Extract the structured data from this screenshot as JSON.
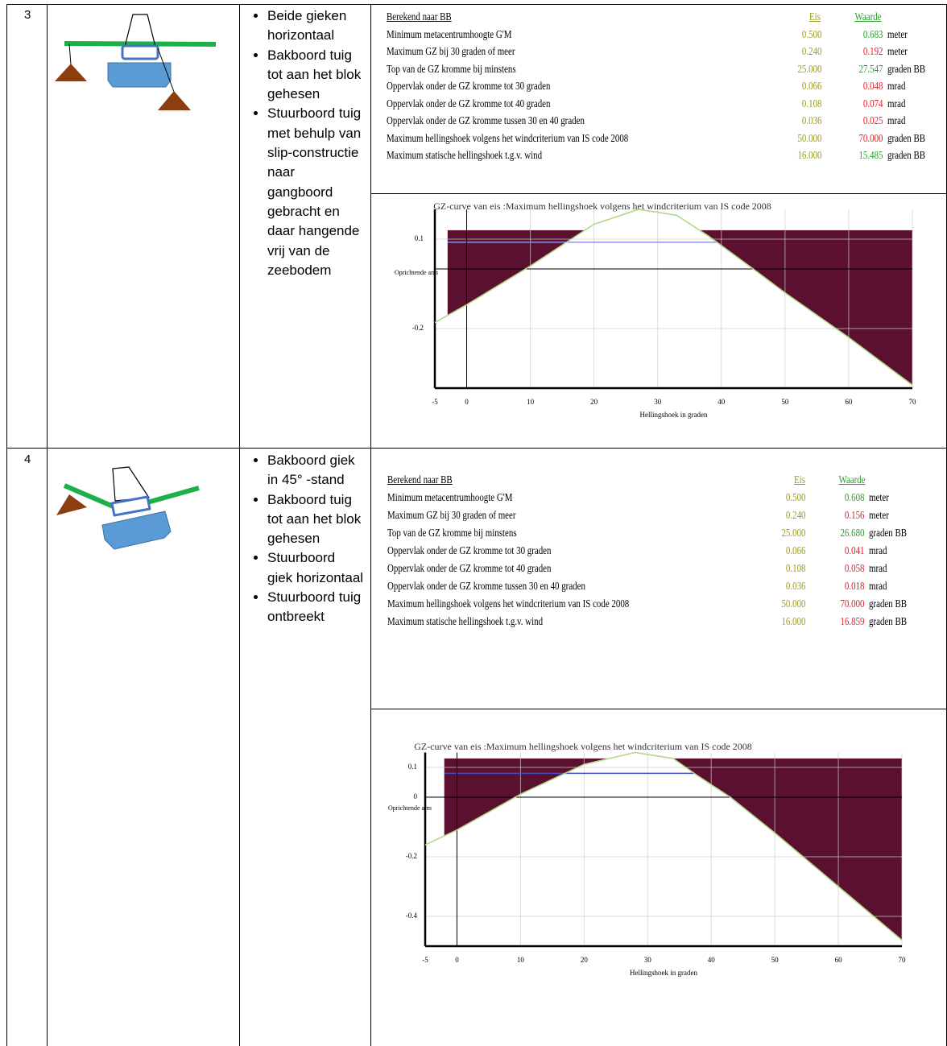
{
  "rows": [
    {
      "number": "3",
      "bullets": [
        "Beide gieken horizontaal",
        "Bakboord tuig tot aan het blok gehesen",
        "Stuurboord tuig met behulp van slip-constructie naar gangboord gebracht en daar hangende vrij van de zeebodem"
      ],
      "stability": {
        "title": "Berekend naar BB",
        "eis_header": "Eis",
        "waarde_header": "Waarde",
        "eis_color": "#9b9b1f",
        "header_color": "#2a9d2a",
        "rows": [
          {
            "label": "Minimum metacentrumhoogte G'M",
            "eis": "0.500",
            "waarde": "0.683",
            "unit": "meter",
            "color": "#2a9d2a"
          },
          {
            "label": "Maximum GZ bij 30 graden of meer",
            "eis": "0.240",
            "waarde": "0.192",
            "unit": "meter",
            "color": "#e0202a"
          },
          {
            "label": "Top van de GZ kromme bij minstens",
            "eis": "25.000",
            "waarde": "27.547",
            "unit": "graden BB",
            "color": "#2a9d2a"
          },
          {
            "label": "Oppervlak onder de GZ kromme tot 30 graden",
            "eis": "0.066",
            "waarde": "0.048",
            "unit": "mrad",
            "color": "#e0202a"
          },
          {
            "label": "Oppervlak onder de GZ kromme tot 40 graden",
            "eis": "0.108",
            "waarde": "0.074",
            "unit": "mrad",
            "color": "#e0202a"
          },
          {
            "label": "Oppervlak onder de GZ kromme tussen 30 en 40 graden",
            "eis": "0.036",
            "waarde": "0.025",
            "unit": "mrad",
            "color": "#e0202a"
          },
          {
            "label": "Maximum hellingshoek volgens het windcriterium van IS code 2008",
            "eis": "50.000",
            "waarde": "70.000",
            "unit": "graden BB",
            "color": "#e0202a"
          },
          {
            "label": "Maximum statische hellingshoek t.g.v. wind",
            "eis": "16.000",
            "waarde": "15.485",
            "unit": "graden BB",
            "color": "#2a9d2a"
          }
        ]
      },
      "chart_data": {
        "type": "line",
        "title": "GZ-curve van eis :Maximum hellingshoek volgens het windcriterium van IS code 2008",
        "x_label": "Hellingshoek in graden",
        "y_label": "Oprichtende arm",
        "x": [
          -5,
          0,
          10,
          20,
          27,
          33,
          38,
          45,
          50,
          60,
          70
        ],
        "values": [
          -0.18,
          -0.12,
          0.01,
          0.15,
          0.2,
          0.18,
          0.11,
          0.0,
          -0.08,
          -0.23,
          -0.39
        ],
        "color": "#b5d98a",
        "fill_color": "#5b1030",
        "shaded_from": -3,
        "shaded_top": 0.13,
        "reference_line": 0.09,
        "reference_color": "#9090e8",
        "xlim": [
          -5,
          70
        ],
        "ylim": [
          -0.4,
          0.2
        ],
        "xticks": [
          -5,
          0,
          10,
          20,
          30,
          40,
          50,
          60,
          70
        ],
        "yticks": [
          0.1,
          -0.2
        ]
      }
    },
    {
      "number": "4",
      "bullets": [
        "Bakboord giek in 45° -stand",
        "Bakboord tuig tot aan het blok gehesen",
        "Stuurboord giek horizontaal",
        "Stuurboord tuig ontbreekt"
      ],
      "stability": {
        "title": "Berekend naar BB",
        "eis_header": "Eis",
        "waarde_header": "Waarde",
        "eis_color": "#9b9b1f",
        "header_color": "#2a9d2a",
        "rows": [
          {
            "label": "Minimum metacentrumhoogte G'M",
            "eis": "0.500",
            "waarde": "0.608",
            "unit": "meter",
            "color": "#2a9d2a"
          },
          {
            "label": "Maximum GZ bij 30 graden of meer",
            "eis": "0.240",
            "waarde": "0.156",
            "unit": "meter",
            "color": "#e0202a"
          },
          {
            "label": "Top van de GZ kromme bij minstens",
            "eis": "25.000",
            "waarde": "26.680",
            "unit": "graden BB",
            "color": "#2a9d2a"
          },
          {
            "label": "Oppervlak onder de GZ kromme tot 30 graden",
            "eis": "0.066",
            "waarde": "0.041",
            "unit": "mrad",
            "color": "#e0202a"
          },
          {
            "label": "Oppervlak onder de GZ kromme tot 40 graden",
            "eis": "0.108",
            "waarde": "0.058",
            "unit": "mrad",
            "color": "#e0202a"
          },
          {
            "label": "Oppervlak onder de GZ kromme tussen 30 en 40 graden",
            "eis": "0.036",
            "waarde": "0.018",
            "unit": "mrad",
            "color": "#e0202a"
          },
          {
            "label": "Maximum hellingshoek volgens het windcriterium van IS code 2008",
            "eis": "50.000",
            "waarde": "70.000",
            "unit": "graden BB",
            "color": "#e0202a"
          },
          {
            "label": "Maximum statische hellingshoek t.g.v. wind",
            "eis": "16.000",
            "waarde": "16.859",
            "unit": "graden BB",
            "color": "#e0202a"
          }
        ]
      },
      "chart_data": {
        "type": "line",
        "title": "GZ-curve van eis :Maximum hellingshoek volgens het windcriterium van IS code 2008",
        "x_label": "Hellingshoek in graden",
        "y_label": "Oprichtende arm",
        "x": [
          -5,
          0,
          10,
          20,
          28,
          34,
          38,
          43,
          50,
          60,
          70
        ],
        "values": [
          -0.16,
          -0.11,
          0.01,
          0.11,
          0.15,
          0.13,
          0.07,
          0.0,
          -0.12,
          -0.3,
          -0.48
        ],
        "color": "#b5d98a",
        "fill_color": "#5b1030",
        "shaded_from": -2,
        "shaded_top": 0.13,
        "reference_line": 0.08,
        "reference_color": "#4050c0",
        "xlim": [
          -5,
          70
        ],
        "ylim": [
          -0.5,
          0.15
        ],
        "xticks": [
          -5,
          0,
          10,
          20,
          30,
          40,
          50,
          60,
          70
        ],
        "yticks": [
          0.1,
          0,
          -0.2,
          -0.4
        ]
      }
    }
  ]
}
